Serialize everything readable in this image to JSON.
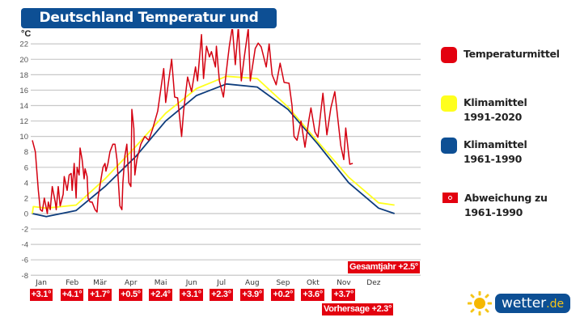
{
  "chart_data": {
    "type": "line",
    "title": "Deutschland Temperatur und Klima",
    "ylabel": "°C",
    "ylim": [
      -8,
      22
    ],
    "yticks": [
      -8,
      -6,
      -4,
      -2,
      0,
      2,
      4,
      6,
      8,
      10,
      12,
      14,
      16,
      18,
      20,
      22
    ],
    "grid": true,
    "legend_placement": "right",
    "x_unit": "day_of_year",
    "months": [
      {
        "label": "Jan",
        "start": 1,
        "deviation": "+3.1°"
      },
      {
        "label": "Feb",
        "start": 32,
        "deviation": "+4.1°"
      },
      {
        "label": "Mär",
        "start": 60,
        "deviation": "+1.7°"
      },
      {
        "label": "Apr",
        "start": 91,
        "deviation": "+0.5°"
      },
      {
        "label": "Mai",
        "start": 121,
        "deviation": "+2.4°"
      },
      {
        "label": "Jun",
        "start": 152,
        "deviation": "+3.1°"
      },
      {
        "label": "Jul",
        "start": 182,
        "deviation": "+2.3°"
      },
      {
        "label": "Aug",
        "start": 213,
        "deviation": "+3.9°"
      },
      {
        "label": "Sep",
        "start": 244,
        "deviation": "+0.2°"
      },
      {
        "label": "Okt",
        "start": 274,
        "deviation": "+3.6°"
      },
      {
        "label": "Nov",
        "start": 305,
        "deviation": "+3.7°"
      },
      {
        "label": "Dez",
        "start": 335,
        "deviation": null
      }
    ],
    "series": [
      {
        "name": "Temperaturmittel",
        "color": "#d40010",
        "points": [
          [
            1,
            9.5
          ],
          [
            3,
            8.5
          ],
          [
            4,
            8
          ],
          [
            7,
            3
          ],
          [
            9,
            0.5
          ],
          [
            11,
            0.3
          ],
          [
            13,
            2
          ],
          [
            16,
            0
          ],
          [
            17,
            1.5
          ],
          [
            19,
            0.5
          ],
          [
            21,
            3.5
          ],
          [
            24,
            1.5
          ],
          [
            25,
            0.5
          ],
          [
            27,
            3.5
          ],
          [
            29,
            1
          ],
          [
            32,
            2.5
          ],
          [
            33,
            4.8
          ],
          [
            36,
            3
          ],
          [
            38,
            5
          ],
          [
            40,
            5.2
          ],
          [
            41,
            3
          ],
          [
            43,
            6.5
          ],
          [
            45,
            2
          ],
          [
            46,
            6
          ],
          [
            48,
            5
          ],
          [
            49,
            8.5
          ],
          [
            51,
            7
          ],
          [
            53,
            4.5
          ],
          [
            54,
            5.8
          ],
          [
            56,
            4.8
          ],
          [
            57,
            2
          ],
          [
            59,
            1.5
          ],
          [
            61,
            1.5
          ],
          [
            64,
            0.5
          ],
          [
            66,
            0.2
          ],
          [
            67,
            2
          ],
          [
            70,
            4.5
          ],
          [
            72,
            6
          ],
          [
            74,
            6.5
          ],
          [
            75,
            5.5
          ],
          [
            77,
            6.5
          ],
          [
            79,
            8
          ],
          [
            82,
            9
          ],
          [
            84,
            9
          ],
          [
            86,
            7
          ],
          [
            87,
            5
          ],
          [
            89,
            1
          ],
          [
            91,
            0.5
          ],
          [
            92,
            4
          ],
          [
            94,
            7.5
          ],
          [
            96,
            9
          ],
          [
            98,
            4
          ],
          [
            100,
            3.5
          ],
          [
            101,
            13.5
          ],
          [
            103,
            11
          ],
          [
            104,
            5
          ],
          [
            106,
            7
          ],
          [
            110,
            9
          ],
          [
            114,
            10
          ],
          [
            118,
            9.5
          ],
          [
            122,
            11
          ],
          [
            127,
            13.3
          ],
          [
            133,
            18.8
          ],
          [
            135,
            14.4
          ],
          [
            141,
            20
          ],
          [
            144,
            15.1
          ],
          [
            147,
            15
          ],
          [
            151,
            10
          ],
          [
            153,
            13.3
          ],
          [
            157,
            17.7
          ],
          [
            161,
            15.8
          ],
          [
            165,
            19
          ],
          [
            167,
            17.2
          ],
          [
            171,
            23.2
          ],
          [
            173,
            17.5
          ],
          [
            176,
            21.7
          ],
          [
            179,
            20.3
          ],
          [
            181,
            21
          ],
          [
            185,
            19
          ],
          [
            186,
            21.7
          ],
          [
            189,
            17.2
          ],
          [
            193,
            15.1
          ],
          [
            197,
            19.6
          ],
          [
            199,
            21.7
          ],
          [
            202,
            24.2
          ],
          [
            205,
            19.3
          ],
          [
            208,
            24.2
          ],
          [
            211,
            17.2
          ],
          [
            214,
            20.3
          ],
          [
            218,
            24
          ],
          [
            220,
            17.2
          ],
          [
            225,
            21.4
          ],
          [
            228,
            22.1
          ],
          [
            231,
            21.6
          ],
          [
            236,
            19
          ],
          [
            239,
            22
          ],
          [
            242,
            18
          ],
          [
            246,
            16.7
          ],
          [
            250,
            19.5
          ],
          [
            254,
            17
          ],
          [
            259,
            16.9
          ],
          [
            262,
            14
          ],
          [
            264,
            10
          ],
          [
            267,
            9.5
          ],
          [
            271,
            12
          ],
          [
            275,
            8.6
          ],
          [
            279,
            12.2
          ],
          [
            281,
            13.7
          ],
          [
            285,
            10.6
          ],
          [
            288,
            9.9
          ],
          [
            293,
            15.6
          ],
          [
            297,
            10.2
          ],
          [
            301,
            13.7
          ],
          [
            305,
            15.8
          ],
          [
            308,
            12.3
          ],
          [
            311,
            8.8
          ],
          [
            314,
            7
          ],
          [
            316,
            11.1
          ],
          [
            320,
            6.4
          ],
          [
            323,
            6.5
          ]
        ]
      },
      {
        "name": "Klimamittel 1991-2020",
        "color": "#ffff1e",
        "points": [
          [
            1,
            0
          ],
          [
            2,
            0.9
          ],
          [
            15,
            0.7
          ],
          [
            45,
            1.1
          ],
          [
            74,
            4.5
          ],
          [
            105,
            8.7
          ],
          [
            135,
            13
          ],
          [
            166,
            16.2
          ],
          [
            196,
            17.8
          ],
          [
            227,
            17.5
          ],
          [
            258,
            13.8
          ],
          [
            288,
            9.3
          ],
          [
            319,
            4.7
          ],
          [
            349,
            1.4
          ],
          [
            365,
            1.1
          ]
        ]
      },
      {
        "name": "Klimamittel 1961-1990",
        "color": "#0d3c7c",
        "points": [
          [
            1,
            0
          ],
          [
            15,
            -0.4
          ],
          [
            45,
            0.4
          ],
          [
            74,
            3.5
          ],
          [
            105,
            7.4
          ],
          [
            135,
            12
          ],
          [
            166,
            15.3
          ],
          [
            196,
            16.8
          ],
          [
            227,
            16.4
          ],
          [
            258,
            13.5
          ],
          [
            288,
            9
          ],
          [
            319,
            4
          ],
          [
            349,
            0.7
          ],
          [
            365,
            0
          ]
        ]
      }
    ],
    "annotations": {
      "gesamtjahr": "Gesamtjahr +2.5°",
      "vorhersage": "Vorhersage +2.3°"
    }
  },
  "legend": [
    {
      "label": "Temperaturmittel",
      "color": "#e3000f"
    },
    {
      "label": "Klimamittel",
      "label2": "1991-2020",
      "color": "#ffff1e"
    },
    {
      "label": "Klimamittel",
      "label2": "1961-1990",
      "color": "#0d4f94"
    },
    {
      "label": "Abweichung zu",
      "label2": "1961-1990",
      "color": "#e3000f"
    }
  ],
  "logo": {
    "name": "wetter",
    "tld": ".de",
    "icon": "sun-icon"
  }
}
